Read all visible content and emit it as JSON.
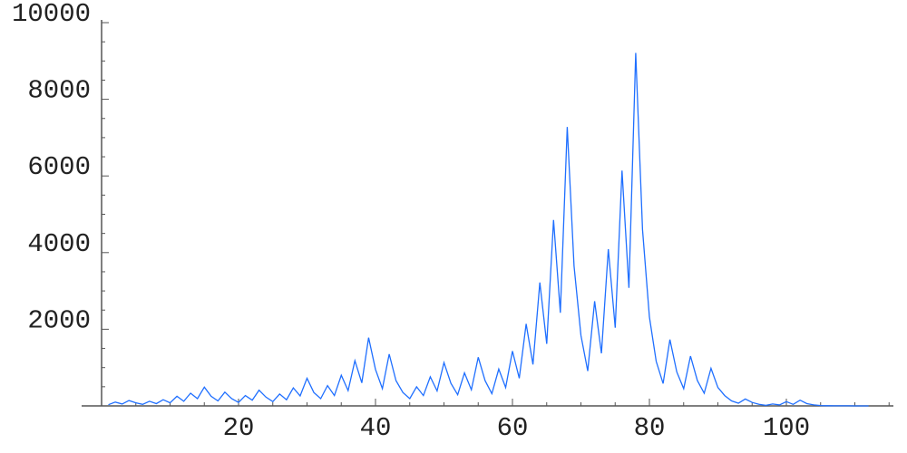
{
  "chart_data": {
    "type": "line",
    "title": "",
    "xlabel": "",
    "ylabel": "",
    "xlim": [
      0,
      116
    ],
    "ylim": [
      0,
      10000
    ],
    "grid": false,
    "x_ticks": [
      20,
      40,
      60,
      80,
      100
    ],
    "x_tick_labels": [
      "20",
      "40",
      "60",
      "80",
      "100"
    ],
    "x_minor_step": 5,
    "y_ticks": [
      2000,
      4000,
      6000,
      8000,
      10000
    ],
    "y_tick_labels": [
      "2000",
      "4000",
      "6000",
      "8000",
      "10000"
    ],
    "y_minor_step": 500,
    "line_color": "#1f6fff",
    "axis_color": "#555555",
    "series": [
      {
        "x": [
          1,
          2,
          3,
          4,
          5,
          6,
          7,
          8,
          9,
          10,
          11,
          12,
          13,
          14,
          15,
          16,
          17,
          18,
          19,
          20,
          21,
          22,
          23,
          24,
          25,
          26,
          27,
          28,
          29,
          30,
          31,
          32,
          33,
          34,
          35,
          36,
          37,
          38,
          39,
          40,
          41,
          42,
          43,
          44,
          45,
          46,
          47,
          48,
          49,
          50,
          51,
          52,
          53,
          54,
          55,
          56,
          57,
          58,
          59,
          60,
          61,
          62,
          63,
          64,
          65,
          66,
          67,
          68,
          69,
          70,
          71,
          72,
          73,
          74,
          75,
          76,
          77,
          78,
          79,
          80,
          81,
          82,
          83,
          84,
          85,
          86,
          87,
          88,
          89,
          90,
          91,
          92,
          93,
          94,
          95,
          96,
          97,
          98,
          99,
          100,
          101,
          102,
          103,
          104,
          105,
          106,
          107,
          108,
          109,
          110,
          111,
          112
        ],
        "y": [
          30,
          100,
          50,
          140,
          80,
          40,
          120,
          60,
          160,
          80,
          250,
          120,
          330,
          190,
          490,
          250,
          130,
          360,
          190,
          90,
          270,
          150,
          410,
          230,
          110,
          310,
          160,
          470,
          260,
          720,
          350,
          190,
          530,
          270,
          800,
          400,
          1180,
          600,
          1780,
          950,
          450,
          1350,
          660,
          350,
          190,
          500,
          270,
          760,
          390,
          1130,
          590,
          290,
          860,
          420,
          1270,
          660,
          320,
          960,
          480,
          1430,
          720,
          2140,
          1080,
          3220,
          1620,
          4850,
          2430,
          7280,
          3650,
          1840,
          910,
          2730,
          1370,
          4090,
          2040,
          6140,
          3080,
          9210,
          4600,
          2320,
          1160,
          585,
          1730,
          885,
          450,
          1300,
          660,
          330,
          980,
          480,
          270,
          130,
          70,
          180,
          90,
          40,
          15,
          50,
          25,
          110,
          40,
          150,
          60,
          25,
          10,
          5,
          3,
          2,
          2,
          1,
          1,
          0
        ]
      }
    ]
  }
}
